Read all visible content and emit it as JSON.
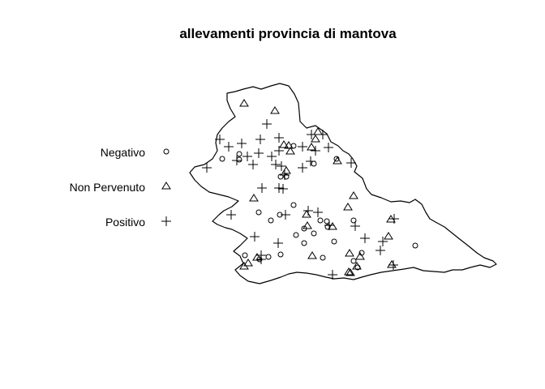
{
  "title": "allevamenti provincia di mantova",
  "legend": [
    {
      "label": "Negativo",
      "symbol": "circle"
    },
    {
      "label": "Non Pervenuto",
      "symbol": "triangle"
    },
    {
      "label": "Positivo",
      "symbol": "plus"
    }
  ],
  "marker_color": "#000000",
  "points": {
    "circle": [
      [
        295,
        190
      ],
      [
        274,
        196
      ],
      [
        295,
        197
      ],
      [
        346,
        218
      ],
      [
        353,
        218
      ],
      [
        362,
        180
      ],
      [
        387,
        202
      ],
      [
        415,
        196
      ],
      [
        362,
        253
      ],
      [
        319,
        262
      ],
      [
        334,
        272
      ],
      [
        345,
        265
      ],
      [
        365,
        290
      ],
      [
        375,
        282
      ],
      [
        395,
        272
      ],
      [
        403,
        273
      ],
      [
        404,
        280
      ],
      [
        375,
        300
      ],
      [
        387,
        288
      ],
      [
        412,
        298
      ],
      [
        302,
        315
      ],
      [
        320,
        320
      ],
      [
        331,
        317
      ],
      [
        346,
        314
      ],
      [
        398,
        318
      ],
      [
        436,
        322
      ],
      [
        446,
        312
      ],
      [
        512,
        303
      ],
      [
        436,
        272
      ],
      [
        441,
        330
      ]
    ],
    "triangle": [
      [
        301,
        128
      ],
      [
        339,
        137
      ],
      [
        350,
        179
      ],
      [
        356,
        180
      ],
      [
        384,
        182
      ],
      [
        392,
        163
      ],
      [
        389,
        172
      ],
      [
        358,
        187
      ],
      [
        416,
        199
      ],
      [
        353,
        211
      ],
      [
        313,
        245
      ],
      [
        436,
        242
      ],
      [
        429,
        256
      ],
      [
        378,
        265
      ],
      [
        379,
        279
      ],
      [
        410,
        280
      ],
      [
        385,
        316
      ],
      [
        431,
        313
      ],
      [
        440,
        329
      ],
      [
        444,
        317
      ],
      [
        479,
        292
      ],
      [
        482,
        271
      ],
      [
        432,
        337
      ],
      [
        430,
        336
      ],
      [
        483,
        327
      ],
      [
        317,
        318
      ],
      [
        306,
        325
      ],
      [
        301,
        329
      ]
    ],
    "plus": [
      [
        329,
        153
      ],
      [
        271,
        172
      ],
      [
        282,
        181
      ],
      [
        298,
        177
      ],
      [
        321,
        172
      ],
      [
        344,
        170
      ],
      [
        384,
        166
      ],
      [
        398,
        166
      ],
      [
        405,
        182
      ],
      [
        319,
        189
      ],
      [
        335,
        193
      ],
      [
        344,
        186
      ],
      [
        373,
        181
      ],
      [
        389,
        186
      ],
      [
        305,
        193
      ],
      [
        292,
        198
      ],
      [
        255,
        207
      ],
      [
        312,
        203
      ],
      [
        340,
        203
      ],
      [
        347,
        205
      ],
      [
        373,
        207
      ],
      [
        383,
        199
      ],
      [
        433,
        201
      ],
      [
        380,
        260
      ],
      [
        351,
        216
      ],
      [
        323,
        232
      ],
      [
        344,
        232
      ],
      [
        349,
        233
      ],
      [
        285,
        265
      ],
      [
        352,
        265
      ],
      [
        392,
        262
      ],
      [
        406,
        278
      ],
      [
        438,
        279
      ],
      [
        486,
        270
      ],
      [
        314,
        292
      ],
      [
        343,
        300
      ],
      [
        472,
        298
      ],
      [
        450,
        294
      ],
      [
        469,
        309
      ],
      [
        485,
        327
      ],
      [
        410,
        339
      ],
      [
        322,
        315
      ],
      [
        322,
        320
      ]
    ]
  }
}
